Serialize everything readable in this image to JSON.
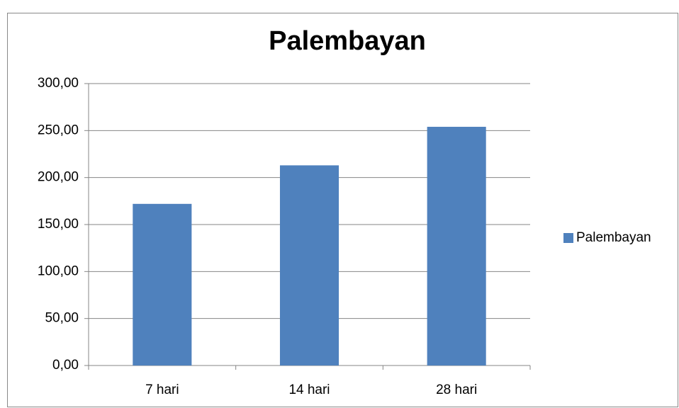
{
  "chart_data": {
    "type": "bar",
    "title": "Palembayan",
    "categories": [
      "7 hari",
      "14 hari",
      "28 hari"
    ],
    "series": [
      {
        "name": "Palembayan",
        "color": "#4f81bd",
        "values": [
          172,
          213,
          254
        ]
      }
    ],
    "ylim": [
      0,
      300
    ],
    "yticks": [
      {
        "value": 0,
        "label": "0,00"
      },
      {
        "value": 50,
        "label": "50,00"
      },
      {
        "value": 100,
        "label": "100,00"
      },
      {
        "value": 150,
        "label": "150,00"
      },
      {
        "value": 200,
        "label": "200,00"
      },
      {
        "value": 250,
        "label": "250,00"
      },
      {
        "value": 300,
        "label": "300,00"
      }
    ],
    "grid": true,
    "legend": "right"
  }
}
